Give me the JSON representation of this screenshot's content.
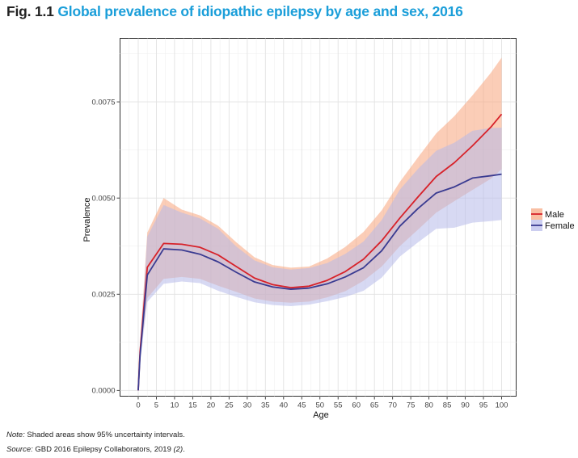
{
  "figure": {
    "number": "Fig. 1.1",
    "title": "Global prevalence of idiopathic epilepsy by age and sex, 2016"
  },
  "notes": {
    "note_label": "Note:",
    "note_text": " Shaded areas show 95% uncertainty intervals.",
    "source_label": "Source:",
    "source_text": " GBD 2016 Epilepsy Collaborators, 2019 ",
    "source_ref": "(2)",
    "source_end": "."
  },
  "chart_data": {
    "type": "line",
    "xlabel": "Age",
    "ylabel": "Prevalence",
    "xlim": [
      -5,
      104
    ],
    "ylim": [
      -0.00015,
      0.00915
    ],
    "x_ticks": [
      0,
      5,
      10,
      15,
      20,
      25,
      30,
      35,
      40,
      45,
      50,
      55,
      60,
      65,
      70,
      75,
      80,
      85,
      90,
      95,
      100
    ],
    "y_ticks": [
      0.0,
      0.0025,
      0.005,
      0.0075
    ],
    "y_tick_labels": [
      "0.0000",
      "0.0025",
      "0.0050",
      "0.0075"
    ],
    "grid": true,
    "legend_position": "right",
    "x": [
      0,
      0.5,
      2.5,
      7,
      12,
      17,
      22,
      27,
      32,
      37,
      42,
      47,
      52,
      57,
      62,
      67,
      72,
      77,
      82,
      87,
      92,
      97,
      100
    ],
    "series": [
      {
        "name": "Male",
        "color": "#d7222a",
        "band_color": "#f7a47c",
        "values": [
          0.0,
          0.001,
          0.0032,
          0.00382,
          0.0038,
          0.00372,
          0.00352,
          0.00322,
          0.00292,
          0.00275,
          0.00267,
          0.00271,
          0.00286,
          0.00309,
          0.00341,
          0.00389,
          0.00448,
          0.00503,
          0.00556,
          0.00592,
          0.00636,
          0.00684,
          0.00718
        ],
        "lower": [
          0.0,
          0.0008,
          0.0024,
          0.0029,
          0.00295,
          0.0029,
          0.00272,
          0.00256,
          0.00239,
          0.00231,
          0.00228,
          0.00231,
          0.00242,
          0.00258,
          0.00285,
          0.00322,
          0.00375,
          0.00418,
          0.00462,
          0.00492,
          0.00521,
          0.0055,
          0.00575
        ],
        "upper": [
          0.0,
          0.0012,
          0.0041,
          0.005,
          0.0047,
          0.00455,
          0.00428,
          0.00385,
          0.00346,
          0.00326,
          0.00319,
          0.00322,
          0.00343,
          0.00373,
          0.00412,
          0.00468,
          0.00542,
          0.00606,
          0.00668,
          0.00713,
          0.00767,
          0.00825,
          0.00865
        ]
      },
      {
        "name": "Female",
        "color": "#3a3b91",
        "band_color": "#b6b9ea",
        "values": [
          0.0,
          0.0009,
          0.003,
          0.00368,
          0.00365,
          0.00354,
          0.00334,
          0.00307,
          0.00282,
          0.00269,
          0.00263,
          0.00266,
          0.00277,
          0.00295,
          0.00319,
          0.00363,
          0.00427,
          0.00473,
          0.00513,
          0.00529,
          0.00552,
          0.00558,
          0.00562
        ],
        "lower": [
          0.0,
          0.0007,
          0.0023,
          0.00277,
          0.00283,
          0.00279,
          0.00259,
          0.00243,
          0.00229,
          0.00222,
          0.00219,
          0.00223,
          0.00232,
          0.00243,
          0.00259,
          0.00293,
          0.00348,
          0.00385,
          0.0042,
          0.00423,
          0.00436,
          0.0044,
          0.00443
        ],
        "upper": [
          0.0,
          0.0011,
          0.004,
          0.00482,
          0.00462,
          0.00447,
          0.0042,
          0.00374,
          0.00338,
          0.0032,
          0.00314,
          0.00318,
          0.00331,
          0.00355,
          0.00387,
          0.00443,
          0.00522,
          0.00576,
          0.00623,
          0.00644,
          0.00675,
          0.00682,
          0.00683
        ]
      }
    ]
  }
}
